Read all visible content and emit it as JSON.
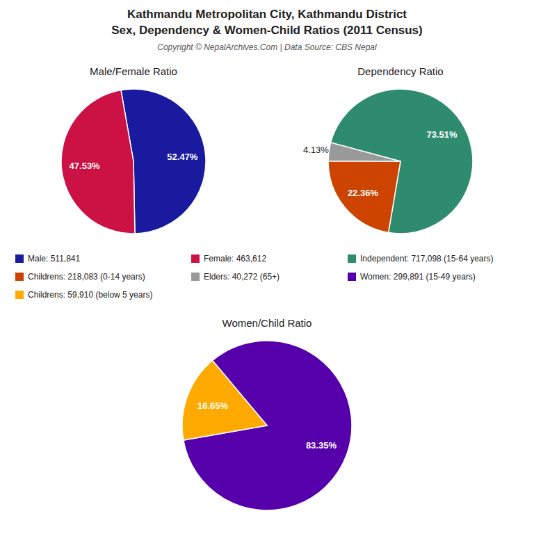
{
  "title": [
    "Kathmandu Metropolitan City, Kathmandu District",
    "Sex, Dependency & Women-Child Ratios (2011 Census)"
  ],
  "subtitle": "Copyright © NepalArchives.Com | Data Source: CBS Nepal",
  "chart_data": [
    {
      "type": "pie",
      "title": "Male/Female Ratio",
      "categories": [
        "Male: 511,841",
        "Female: 463,612"
      ],
      "values": [
        52.47,
        47.53
      ],
      "value_labels": [
        "52.47%",
        "47.53%"
      ],
      "colors": [
        "#1A1A9E",
        "#CC1144"
      ],
      "data_labels": true,
      "legend": "bottom"
    },
    {
      "type": "pie",
      "title": "Dependency Ratio",
      "categories": [
        "Independent: 717,098 (15-64 years)",
        "Childrens: 218,083 (0-14 years)",
        "Elders: 40,272 (65+)"
      ],
      "values": [
        73.51,
        22.36,
        4.13
      ],
      "value_labels": [
        "73.51%",
        "22.36%",
        "4.13%"
      ],
      "colors": [
        "#2E8B6E",
        "#CC4400",
        "#999999"
      ],
      "data_labels": true,
      "legend": "bottom"
    },
    {
      "type": "pie",
      "title": "Women/Child Ratio",
      "categories": [
        "Women: 299,891 (15-49 years)",
        "Childrens: 59,910 (below 5 years)"
      ],
      "values": [
        83.35,
        16.65
      ],
      "value_labels": [
        "83.35%",
        "16.65%"
      ],
      "colors": [
        "#5500AA",
        "#FFAA00"
      ],
      "data_labels": true,
      "legend": "top"
    }
  ]
}
